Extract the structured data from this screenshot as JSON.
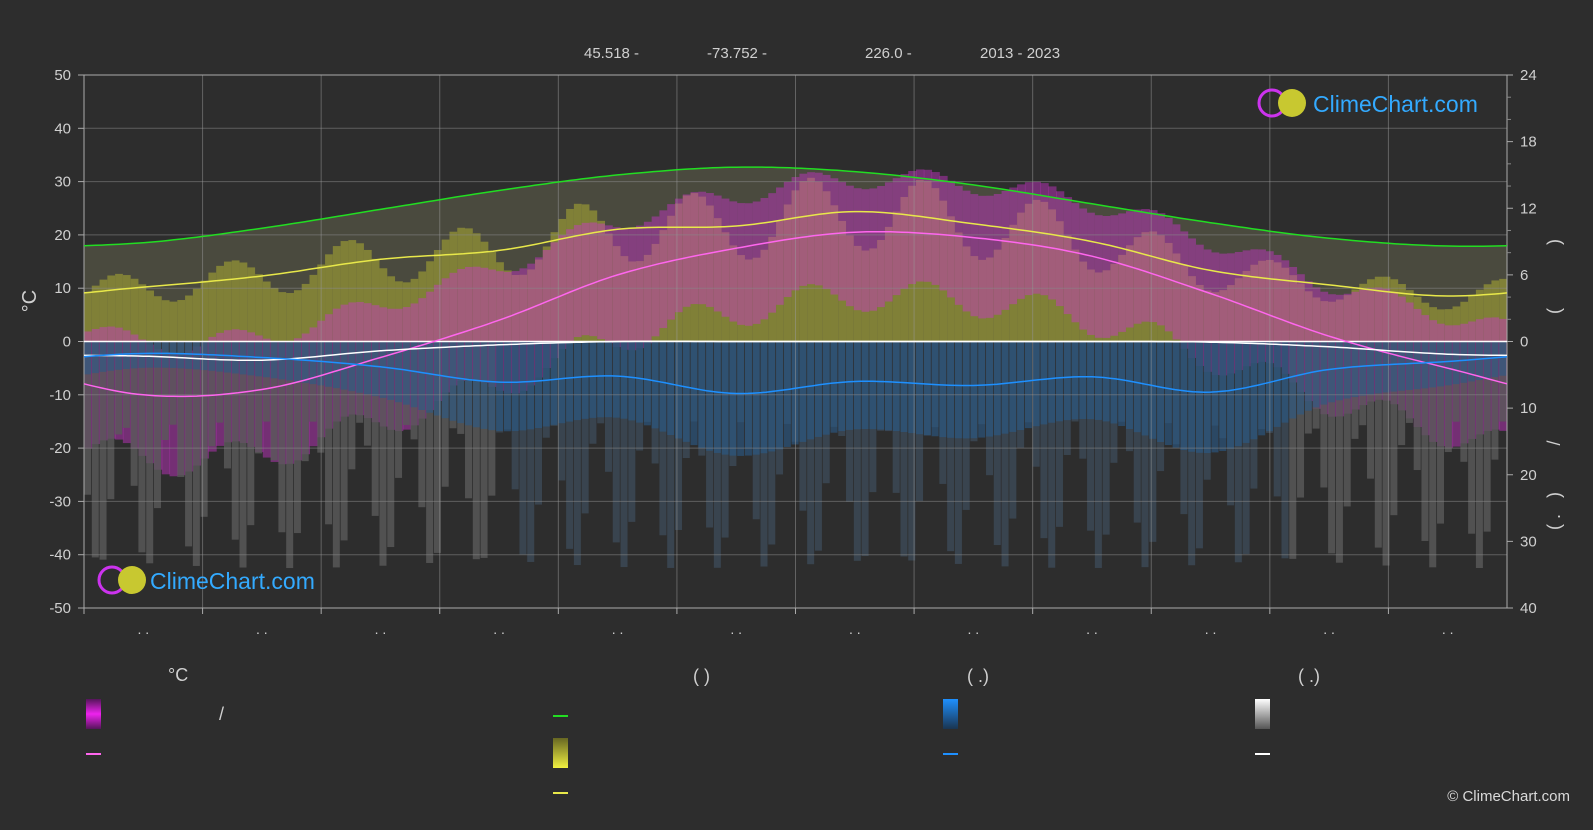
{
  "header": {
    "lat": "45.518 -",
    "lon": "-73.752 -",
    "elev": "226.0 -",
    "years": "2013 - 2023"
  },
  "axes": {
    "left_unit": "°C",
    "left_ticks": [
      "50",
      "40",
      "30",
      "20",
      "10",
      "0",
      "-10",
      "-20",
      "-30",
      "-40",
      "-50"
    ],
    "right_ticks_top": [
      "24",
      "18",
      "12",
      "6",
      "0"
    ],
    "right_ticks_bottom": [
      "10",
      "20",
      "30",
      "40"
    ],
    "right_label_parts": [
      ")",
      "(",
      "/",
      ")",
      "( ."
    ],
    "month_labels": [
      ". .",
      ". .",
      ". .",
      ". .",
      ". .",
      ". .",
      ". .",
      ". .",
      ". .",
      ". .",
      ". .",
      ". ."
    ]
  },
  "watermark": {
    "text": "ClimeChart.com"
  },
  "legend": {
    "col1_heading": "°C",
    "col1_row1_sep": "/",
    "col2_heading": "(          )",
    "col3_heading": "(   .)",
    "col4_heading": "(   .)"
  },
  "copyright": "© ClimeChart.com",
  "colors": {
    "background": "#2d2d2d",
    "daylight": "#22dd22",
    "sunshine": "#e8e84a",
    "temp_mean": "#ff66ee",
    "temp_range": "#dd22dd",
    "rain": "#1e90ff",
    "snow": "#ffffff",
    "watermark_text": "#33aaff"
  },
  "chart_data": {
    "type": "line",
    "x": [
      "Jan",
      "Feb",
      "Mar",
      "Apr",
      "May",
      "Jun",
      "Jul",
      "Aug",
      "Sep",
      "Oct",
      "Nov",
      "Dec"
    ],
    "left_axis": {
      "label": "°C",
      "ylim": [
        -50,
        50
      ]
    },
    "right_axis_top": {
      "ylim": [
        0,
        24
      ],
      "ticks": [
        0,
        6,
        12,
        18,
        24
      ]
    },
    "right_axis_bottom": {
      "ylim": [
        0,
        40
      ],
      "ticks": [
        0,
        10,
        20,
        30,
        40
      ]
    },
    "series": [
      {
        "key": "daylight",
        "axis": "right_top",
        "values": [
          8.9,
          10.2,
          11.9,
          13.6,
          15.0,
          15.7,
          15.3,
          14.1,
          12.4,
          10.7,
          9.3,
          8.6
        ]
      },
      {
        "key": "sunshine",
        "axis": "right_top",
        "values": [
          4.9,
          5.9,
          7.4,
          8.2,
          10.1,
          10.4,
          11.7,
          10.6,
          9.0,
          6.4,
          5.1,
          4.1
        ]
      },
      {
        "key": "temp_mean",
        "axis": "left",
        "values": [
          -10.0,
          -9.0,
          -3.0,
          4.0,
          12.5,
          17.5,
          20.5,
          19.5,
          16.0,
          9.0,
          1.0,
          -5.0
        ]
      },
      {
        "key": "snow",
        "axis": "right_bottom",
        "values": [
          2.2,
          2.8,
          1.4,
          0.5,
          0.0,
          0.0,
          0.0,
          0.0,
          0.0,
          0.1,
          0.8,
          1.9
        ]
      },
      {
        "key": "rain",
        "axis": "right_bottom",
        "values": [
          1.8,
          2.4,
          3.8,
          6.1,
          5.2,
          7.8,
          6.0,
          6.6,
          5.3,
          7.6,
          4.2,
          3.0
        ]
      }
    ],
    "grid": true
  }
}
